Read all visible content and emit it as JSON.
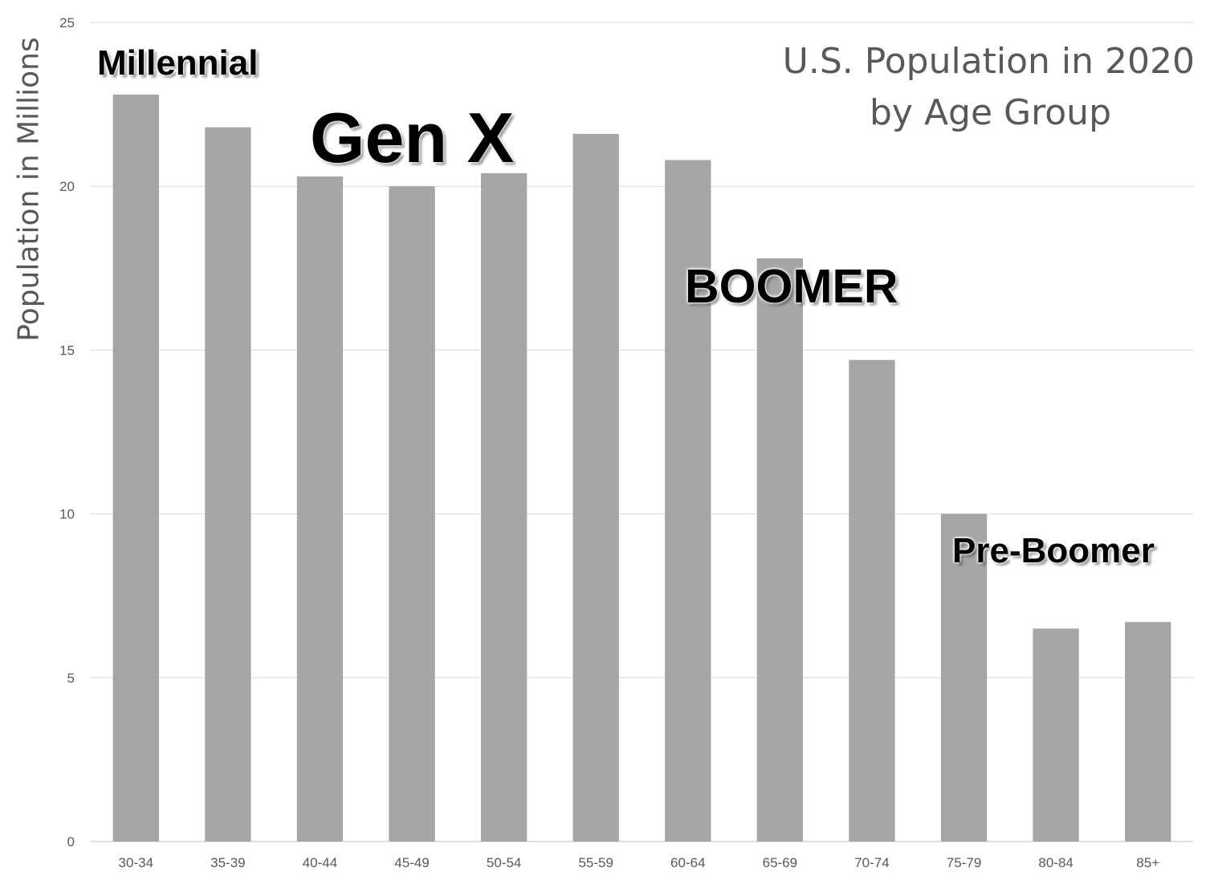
{
  "chart_data": {
    "type": "bar",
    "title": [
      "U.S. Population in 2020",
      "by Age Group"
    ],
    "xlabel": "",
    "ylabel": "Population in Millions",
    "categories": [
      "30-34",
      "35-39",
      "40-44",
      "45-49",
      "50-54",
      "55-59",
      "60-64",
      "65-69",
      "70-74",
      "75-79",
      "80-84",
      "85+"
    ],
    "values": [
      22.8,
      21.8,
      20.3,
      20.0,
      20.4,
      21.6,
      20.8,
      17.8,
      14.7,
      10.0,
      6.5,
      6.7
    ],
    "ylim": [
      0,
      25
    ],
    "yticks": [
      0,
      5,
      10,
      15,
      20,
      25
    ],
    "grid": true,
    "bar_color": "#a5a5a5",
    "annotations": [
      "Millennial",
      "Gen X",
      "BOOMER",
      "Pre-Boomer"
    ]
  }
}
